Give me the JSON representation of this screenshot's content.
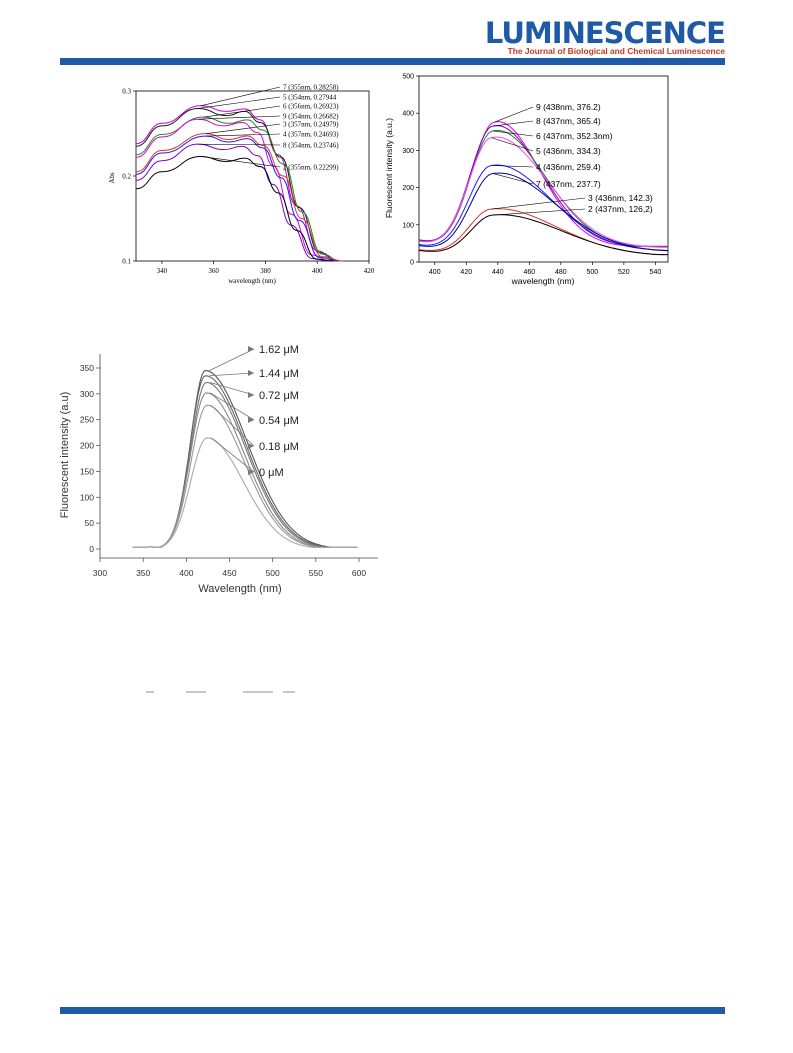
{
  "header": {
    "journal_title": "LUMINESCENCE",
    "journal_subtitle": "The Journal of Biological and Chemical Luminescence"
  },
  "colors": {
    "brand_blue": "#1f5aa6",
    "subtitle_red": "#c0392b"
  },
  "chart_data": [
    {
      "type": "line",
      "xlabel": "wavelength (nm)",
      "ylabel": "Abs",
      "xlim": [
        330,
        420
      ],
      "ylim": [
        0.1,
        0.3
      ],
      "x_ticks": [
        "340",
        "360",
        "380",
        "400",
        "420"
      ],
      "y_ticks": [
        "0.1",
        "0.2",
        "0.3"
      ],
      "series": [
        {
          "name": "7",
          "color": "#cc00cc",
          "peak": [
            355,
            0.28258
          ],
          "x": [
            330,
            340,
            355,
            365,
            372,
            378,
            385,
            392,
            400,
            407
          ],
          "y": [
            0.238,
            0.262,
            0.2826,
            0.276,
            0.279,
            0.266,
            0.225,
            0.165,
            0.112,
            0.1
          ]
        },
        {
          "name": "5",
          "color": "#1a1a1a",
          "peak": [
            354,
            0.27944
          ],
          "x": [
            330,
            340,
            354,
            365,
            372,
            378,
            386,
            393,
            401,
            408
          ],
          "y": [
            0.235,
            0.259,
            0.2794,
            0.271,
            0.276,
            0.263,
            0.222,
            0.163,
            0.11,
            0.1
          ]
        },
        {
          "name": "6",
          "color": "#228b22",
          "peak": [
            356,
            0.26923
          ],
          "x": [
            330,
            340,
            356,
            366,
            373,
            379,
            387,
            394,
            402,
            409
          ],
          "y": [
            0.225,
            0.249,
            0.2692,
            0.262,
            0.266,
            0.254,
            0.214,
            0.158,
            0.108,
            0.1
          ]
        },
        {
          "name": "9",
          "color": "#e000e0",
          "peak": [
            354,
            0.26682
          ],
          "x": [
            330,
            340,
            354,
            364,
            371,
            377,
            383,
            390,
            398,
            405
          ],
          "y": [
            0.222,
            0.246,
            0.2668,
            0.259,
            0.263,
            0.251,
            0.212,
            0.155,
            0.107,
            0.1
          ]
        },
        {
          "name": "3",
          "color": "#e53030",
          "peak": [
            357,
            0.24979
          ],
          "x": [
            330,
            340,
            357,
            366,
            373,
            379,
            387,
            394,
            402,
            410
          ],
          "y": [
            0.205,
            0.23,
            0.2498,
            0.243,
            0.247,
            0.236,
            0.2,
            0.15,
            0.105,
            0.1
          ]
        },
        {
          "name": "4",
          "color": "#1a1aff",
          "peak": [
            357,
            0.24693
          ],
          "x": [
            330,
            340,
            357,
            366,
            373,
            379,
            386,
            393,
            401,
            408
          ],
          "y": [
            0.202,
            0.227,
            0.2469,
            0.24,
            0.244,
            0.233,
            0.198,
            0.148,
            0.104,
            0.1
          ]
        },
        {
          "name": "8",
          "color": "#7a00cc",
          "peak": [
            354,
            0.23746
          ],
          "x": [
            330,
            340,
            354,
            364,
            371,
            377,
            383,
            390,
            398,
            405
          ],
          "y": [
            0.195,
            0.218,
            0.2375,
            0.231,
            0.235,
            0.224,
            0.19,
            0.142,
            0.103,
            0.1
          ]
        },
        {
          "name": "2",
          "color": "#000000",
          "peak": [
            355,
            0.22299
          ],
          "x": [
            330,
            340,
            355,
            365,
            372,
            378,
            385,
            392,
            400,
            406
          ],
          "y": [
            0.185,
            0.205,
            0.223,
            0.217,
            0.221,
            0.211,
            0.18,
            0.136,
            0.102,
            0.1
          ]
        }
      ],
      "annotations": [
        "7 (355nm, 0.28258)",
        "5 (354nm, 0.27944",
        "6 (356nm, 0.26923)",
        "9 (354nm, 0.26682)",
        "3 (357nm, 0.24979)",
        "4 (357nm, 0.24693)",
        "8 (354nm, 0.23746)",
        "2 (355nm, 0.22299)"
      ]
    },
    {
      "type": "line",
      "xlabel": "wavelength (nm)",
      "ylabel": "Fluorescent intensity (a.u.)",
      "xlim": [
        390,
        548
      ],
      "ylim": [
        0,
        500
      ],
      "x_ticks": [
        "400",
        "420",
        "440",
        "460",
        "480",
        "500",
        "520",
        "540"
      ],
      "y_ticks": [
        "0",
        "100",
        "200",
        "300",
        "400",
        "500"
      ],
      "series": [
        {
          "name": "9",
          "color": "#e000e0",
          "peak": [
            438,
            376.2
          ]
        },
        {
          "name": "8",
          "color": "#7a00cc",
          "peak": [
            437,
            365.4
          ]
        },
        {
          "name": "6",
          "color": "#228b22",
          "peak": [
            437,
            352.3
          ]
        },
        {
          "name": "5",
          "color": "#ff44ff",
          "peak": [
            436,
            334.3
          ]
        },
        {
          "name": "4",
          "color": "#1a1aff",
          "peak": [
            436,
            259.4
          ]
        },
        {
          "name": "7",
          "color": "#00008b",
          "peak": [
            437,
            237.7
          ]
        },
        {
          "name": "3",
          "color": "#e53030",
          "peak": [
            436,
            142.3
          ]
        },
        {
          "name": "2",
          "color": "#000000",
          "peak": [
            437,
            126.2
          ]
        }
      ],
      "annotations": [
        "9 (438nm, 376.2)",
        "8 (437nm, 365.4)",
        "6 (437nm, 352.3nm)",
        "5 (436nm, 334.3)",
        "4 (436nm, 259.4)",
        "7 (437nm, 237.7)",
        "3 (436nm, 142.3)",
        "2 (437nm, 126,2)"
      ]
    },
    {
      "type": "line",
      "xlabel": "Wavelength (nm)",
      "ylabel": "Fluorescent intensity (a.u)",
      "xlim": [
        300,
        600
      ],
      "ylim": [
        0,
        350
      ],
      "x_ticks": [
        "300",
        "350",
        "400",
        "450",
        "500",
        "550",
        "600"
      ],
      "y_ticks": [
        "0",
        "50",
        "100",
        "150",
        "200",
        "250",
        "300",
        "350"
      ],
      "series": [
        {
          "name": "1.62 μM",
          "color": "#555555",
          "peak": [
            422,
            345
          ]
        },
        {
          "name": "1.44 μM",
          "color": "#666666",
          "peak": [
            422,
            335
          ]
        },
        {
          "name": "0.72 μM",
          "color": "#777777",
          "peak": [
            423,
            322
          ]
        },
        {
          "name": "0.54 μM",
          "color": "#888888",
          "peak": [
            423,
            302
          ]
        },
        {
          "name": "0.18 μM",
          "color": "#999999",
          "peak": [
            424,
            278
          ]
        },
        {
          "name": "0 μM",
          "color": "#aaaaaa",
          "peak": [
            424,
            215
          ]
        }
      ],
      "annotations": [
        "1.62 μM",
        "1.44 μM",
        "0.72 μM",
        "0.54 μM",
        "0.18 μM",
        "0 μM"
      ]
    }
  ]
}
